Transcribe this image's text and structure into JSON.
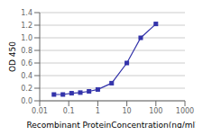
{
  "chart_data": {
    "type": "line",
    "x": [
      0.031,
      0.063,
      0.125,
      0.25,
      0.5,
      1.0,
      3.0,
      10.0,
      30.0,
      100.0
    ],
    "series": [
      {
        "values": [
          0.1,
          0.1,
          0.12,
          0.13,
          0.15,
          0.18,
          0.28,
          0.6,
          1.0,
          1.22
        ],
        "color": "#3333aa",
        "marker": "square"
      }
    ],
    "xlabel": "Recombinant ProteinConcentration(ng/ml)",
    "ylabel": "OD 450",
    "log": "x",
    "xlim": [
      0.01,
      1000
    ],
    "xticks": [
      0.01,
      0.1,
      1,
      10,
      100,
      1000
    ],
    "ylim": [
      0,
      1.4
    ],
    "yticks": [
      {
        "value": 0,
        "label": "0.0"
      },
      0.2,
      0.4,
      0.6,
      0.8,
      {
        "value": 1.0,
        "label": "1.0"
      },
      1.2,
      1.4
    ],
    "grid": "y"
  }
}
